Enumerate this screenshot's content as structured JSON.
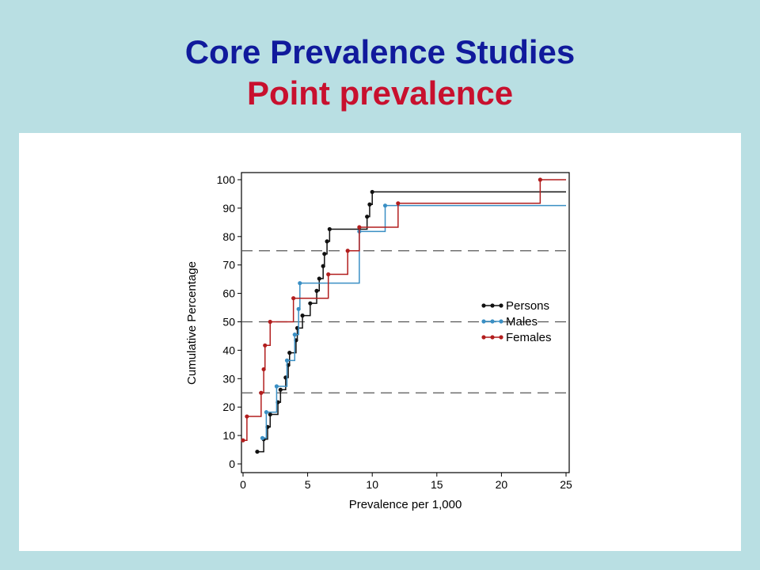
{
  "slide": {
    "title": "Core Prevalence Studies",
    "subtitle": "Point prevalence"
  },
  "chart_data": {
    "type": "line",
    "subtype": "step",
    "xlabel": "Prevalence per 1,000",
    "ylabel": "Cumulative Percentage",
    "xlim": [
      0,
      25
    ],
    "ylim": [
      0,
      100
    ],
    "xticks": [
      0,
      5,
      10,
      15,
      20,
      25
    ],
    "yticks": [
      0,
      10,
      20,
      30,
      40,
      50,
      60,
      70,
      80,
      90,
      100
    ],
    "reference_lines_y": [
      25,
      50,
      75
    ],
    "legend_position": "right",
    "series": [
      {
        "name": "Persons",
        "color": "#111111",
        "points": [
          [
            1.1,
            4.3
          ],
          [
            1.6,
            8.7
          ],
          [
            1.9,
            13
          ],
          [
            2.1,
            17.4
          ],
          [
            2.7,
            21.7
          ],
          [
            2.9,
            26.1
          ],
          [
            3.3,
            30.4
          ],
          [
            3.5,
            34.8
          ],
          [
            3.6,
            39.1
          ],
          [
            4.1,
            43.5
          ],
          [
            4.2,
            47.8
          ],
          [
            4.6,
            52.2
          ],
          [
            5.2,
            56.5
          ],
          [
            5.7,
            60.9
          ],
          [
            5.9,
            65.2
          ],
          [
            6.2,
            69.6
          ],
          [
            6.3,
            73.9
          ],
          [
            6.5,
            78.3
          ],
          [
            6.7,
            82.6
          ],
          [
            9.6,
            87
          ],
          [
            9.8,
            91.3
          ],
          [
            10,
            95.7
          ]
        ]
      },
      {
        "name": "Males",
        "color": "#3a8fc4",
        "points": [
          [
            1.5,
            9.1
          ],
          [
            1.8,
            18.2
          ],
          [
            2.6,
            27.3
          ],
          [
            3.4,
            36.4
          ],
          [
            4.0,
            45.5
          ],
          [
            4.3,
            54.5
          ],
          [
            4.4,
            63.6
          ],
          [
            9.0,
            81.8
          ],
          [
            11.0,
            90.9
          ]
        ]
      },
      {
        "name": "Females",
        "color": "#b21e1e",
        "points": [
          [
            0,
            8.3
          ],
          [
            0.3,
            16.7
          ],
          [
            1.4,
            25
          ],
          [
            1.6,
            33.3
          ],
          [
            1.7,
            41.7
          ],
          [
            2.1,
            50
          ],
          [
            3.9,
            58.3
          ],
          [
            6.6,
            66.7
          ],
          [
            8.1,
            75
          ],
          [
            9.0,
            83.3
          ],
          [
            12.0,
            91.7
          ],
          [
            23.0,
            100
          ]
        ]
      }
    ]
  }
}
